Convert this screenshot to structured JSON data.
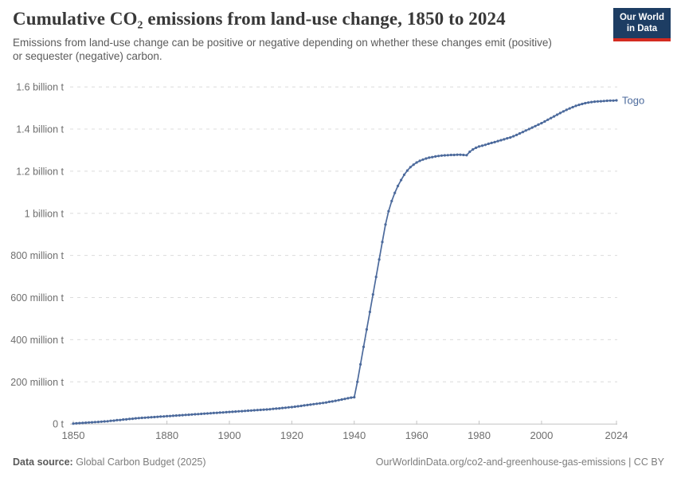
{
  "header": {
    "title": "Cumulative CO₂ emissions from land-use change, 1850 to 2024",
    "subtitle": "Emissions from land-use change can be positive or negative depending on whether these changes emit (positive) or sequester (negative) carbon.",
    "logo": {
      "line1": "Our World",
      "line2": "in Data",
      "bg_color": "#1d3d63",
      "accent_color": "#d42b20"
    }
  },
  "chart_data": {
    "type": "line",
    "title": "Cumulative CO₂ emissions from land-use change, 1850 to 2024",
    "subtitle": "Emissions from land-use change can be positive or negative depending on whether these changes emit (positive) or sequester (negative) carbon.",
    "grid": true,
    "legend_position": "end-of-line-label",
    "unit": "t",
    "values_unit": "million tonnes of CO₂",
    "xlim": [
      1850,
      2024
    ],
    "ylim_millions": [
      0,
      1600
    ],
    "x_start": 1850,
    "x_step": 1,
    "x_ticks": [
      1850,
      1880,
      1900,
      1920,
      1940,
      1960,
      1980,
      2000,
      2024
    ],
    "y_ticks": [
      {
        "value": 0,
        "label": "0 t"
      },
      {
        "value": 200,
        "label": "200 million t"
      },
      {
        "value": 400,
        "label": "400 million t"
      },
      {
        "value": 600,
        "label": "600 million t"
      },
      {
        "value": 800,
        "label": "800 million t"
      },
      {
        "value": 1000,
        "label": "1 billion t"
      },
      {
        "value": 1200,
        "label": "1.2 billion t"
      },
      {
        "value": 1400,
        "label": "1.4 billion t"
      },
      {
        "value": 1600,
        "label": "1.6 billion t"
      }
    ],
    "series": [
      {
        "name": "Togo",
        "color": "#4C6A9C",
        "values_millions": [
          2,
          3,
          4,
          5,
          6,
          7,
          8,
          9,
          10,
          11,
          12,
          13,
          15,
          16,
          18,
          19,
          21,
          22,
          24,
          25,
          27,
          28,
          29,
          30,
          31,
          32,
          33,
          34,
          35,
          36,
          37,
          38,
          39,
          40,
          41,
          42,
          43,
          44,
          45,
          46,
          47,
          48,
          49,
          50,
          51,
          52,
          53,
          54,
          55,
          56,
          57,
          58,
          59,
          60,
          61,
          62,
          63,
          64,
          65,
          66,
          67,
          68,
          69,
          70,
          72,
          73,
          74,
          76,
          77,
          79,
          80,
          82,
          84,
          86,
          88,
          90,
          92,
          94,
          96,
          98,
          100,
          102,
          105,
          107,
          110,
          113,
          116,
          119,
          122,
          125,
          127,
          200,
          283,
          366,
          449,
          532,
          615,
          698,
          781,
          864,
          947,
          1010,
          1058,
          1097,
          1130,
          1158,
          1183,
          1203,
          1219,
          1231,
          1241,
          1249,
          1255,
          1260,
          1264,
          1267,
          1270,
          1272,
          1274,
          1275,
          1276,
          1277,
          1277,
          1278,
          1278,
          1277,
          1276,
          1292,
          1303,
          1311,
          1317,
          1321,
          1325,
          1330,
          1334,
          1338,
          1343,
          1347,
          1351,
          1356,
          1360,
          1366,
          1372,
          1379,
          1386,
          1393,
          1400,
          1407,
          1414,
          1421,
          1428,
          1436,
          1444,
          1452,
          1460,
          1468,
          1476,
          1484,
          1491,
          1498,
          1504,
          1510,
          1515,
          1519,
          1523,
          1526,
          1528,
          1530,
          1531,
          1532,
          1533,
          1534,
          1535,
          1535,
          1536
        ]
      }
    ],
    "end_label": "Togo"
  },
  "footer": {
    "source_label": "Data source:",
    "source_value": "Global Carbon Budget (2025)",
    "link": "OurWorldinData.org/co2-and-greenhouse-gas-emissions | CC BY"
  }
}
